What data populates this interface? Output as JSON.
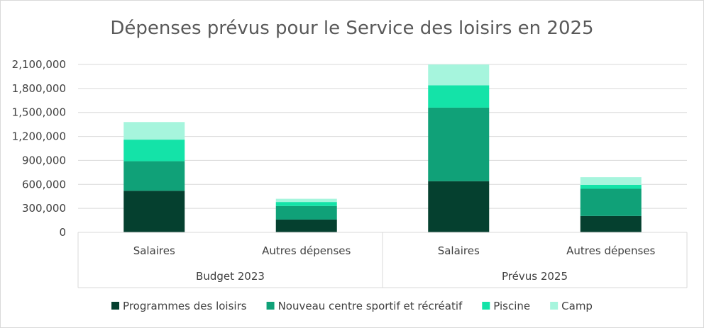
{
  "chart_data": {
    "type": "bar",
    "stacked": true,
    "title": "Dépenses prévus pour le Service des loisirs en 2025",
    "categories": [
      "Salaires",
      "Autres dépenses",
      "Salaires",
      "Autres dépenses"
    ],
    "groups": [
      {
        "label": "Budget 2023",
        "span": 2
      },
      {
        "label": "Prévus 2025",
        "span": 2
      }
    ],
    "series": [
      {
        "name": "Programmes des loisirs",
        "color": "#05402f",
        "values": [
          520000,
          160000,
          640000,
          205000
        ]
      },
      {
        "name": "Nouveau centre sportif et récréatif",
        "color": "#10a178",
        "values": [
          370000,
          170000,
          920000,
          340000
        ]
      },
      {
        "name": "Piscine",
        "color": "#14e3a8",
        "values": [
          270000,
          50000,
          280000,
          50000
        ]
      },
      {
        "name": "Camp",
        "color": "#a6f5dd",
        "values": [
          220000,
          40000,
          260000,
          95000
        ]
      }
    ],
    "ylim": [
      0,
      2100000
    ],
    "yticks": [
      0,
      300000,
      600000,
      900000,
      1200000,
      1500000,
      1800000,
      2100000
    ],
    "ytick_labels": [
      "0",
      "300,000",
      "600,000",
      "900,000",
      "1,200,000",
      "1,500,000",
      "1,800,000",
      "2,100,000"
    ],
    "grid": true,
    "legend_position": "bottom"
  }
}
